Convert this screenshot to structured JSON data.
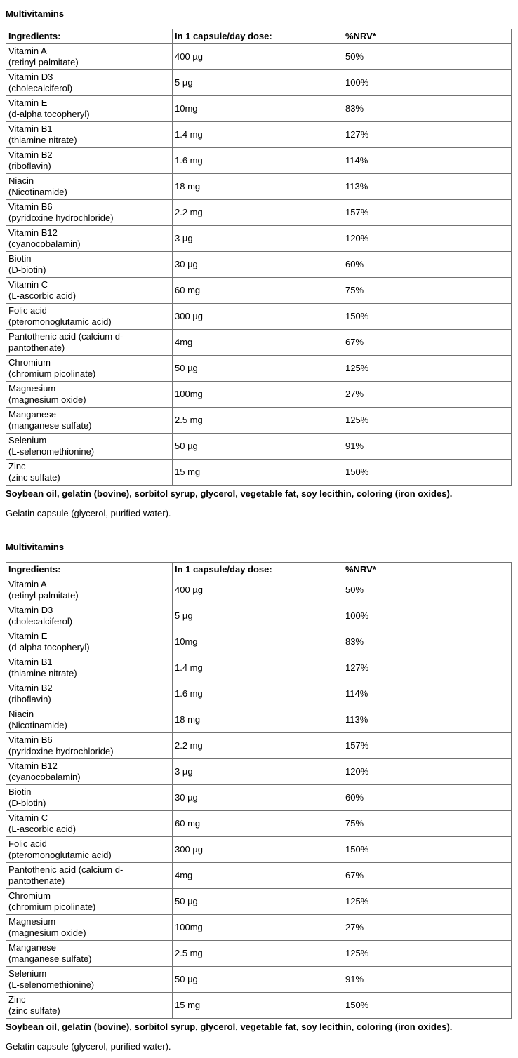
{
  "page": {
    "background_color": "#ffffff",
    "text_color": "#000000",
    "table_border_color": "#737373"
  },
  "sections": [
    {
      "heading": "Multivitamins",
      "table": {
        "columns": [
          "Ingredients:",
          "In 1 capsule/day dose:",
          "%NRV*"
        ],
        "rows": [
          {
            "name": "Vitamin A",
            "sub": "(retinyl palmitate)",
            "dose": "400 µg",
            "nrv": "50%"
          },
          {
            "name": "Vitamin D3",
            "sub": "(cholecalciferol)",
            "dose": "5 µg",
            "nrv": "100%"
          },
          {
            "name": "Vitamin E",
            "sub": "(d-alpha tocopheryl)",
            "dose": "10mg",
            "nrv": "83%"
          },
          {
            "name": "Vitamin B1",
            "sub": "(thiamine nitrate)",
            "dose": "1.4 mg",
            "nrv": "127%"
          },
          {
            "name": "Vitamin B2",
            "sub": "(riboflavin)",
            "dose": "1.6 mg",
            "nrv": "114%"
          },
          {
            "name": "Niacin",
            "sub": "(Nicotinamide)",
            "dose": "18 mg",
            "nrv": "113%"
          },
          {
            "name": "Vitamin B6",
            "sub": "(pyridoxine hydrochloride)",
            "dose": "2.2 mg",
            "nrv": "157%"
          },
          {
            "name": "Vitamin B12",
            "sub": "(cyanocobalamin)",
            "dose": "3 µg",
            "nrv": "120%"
          },
          {
            "name": "Biotin",
            "sub": "(D-biotin)",
            "dose": "30 µg",
            "nrv": "60%"
          },
          {
            "name": "Vitamin C",
            "sub": "(L-ascorbic acid)",
            "dose": "60 mg",
            "nrv": "75%"
          },
          {
            "name": "Folic acid",
            "sub": "(pteromonoglutamic acid)",
            "dose": "300 µg",
            "nrv": "150%"
          },
          {
            "name": "Pantothenic acid (calcium d-pantothenate)",
            "sub": "",
            "dose": "4mg",
            "nrv": "67%"
          },
          {
            "name": "Chromium",
            "sub": "(chromium picolinate)",
            "dose": "50 µg",
            "nrv": "125%"
          },
          {
            "name": "Magnesium",
            "sub": "(magnesium oxide)",
            "dose": "100mg",
            "nrv": "27%"
          },
          {
            "name": "Manganese",
            "sub": "(manganese sulfate)",
            "dose": "2.5 mg",
            "nrv": "125%"
          },
          {
            "name": "Selenium",
            "sub": "(L-selenomethionine)",
            "dose": "50 µg",
            "nrv": "91%"
          },
          {
            "name": "Zinc",
            "sub": "(zinc sulfate)",
            "dose": "15 mg",
            "nrv": "150%"
          }
        ]
      },
      "footer_bold": "Soybean oil, gelatin (bovine), sorbitol syrup, glycerol, vegetable fat, soy lecithin, coloring (iron oxides).",
      "footer_regular": "Gelatin capsule (glycerol, purified water)."
    },
    {
      "heading": "Multivitamins",
      "table": {
        "columns": [
          "Ingredients:",
          "In 1 capsule/day dose:",
          "%NRV*"
        ],
        "rows": [
          {
            "name": "Vitamin A",
            "sub": "(retinyl palmitate)",
            "dose": "400 µg",
            "nrv": "50%"
          },
          {
            "name": "Vitamin D3",
            "sub": "(cholecalciferol)",
            "dose": "5 µg",
            "nrv": "100%"
          },
          {
            "name": "Vitamin E",
            "sub": "(d-alpha tocopheryl)",
            "dose": "10mg",
            "nrv": "83%"
          },
          {
            "name": "Vitamin B1",
            "sub": "(thiamine nitrate)",
            "dose": "1.4 mg",
            "nrv": "127%"
          },
          {
            "name": "Vitamin B2",
            "sub": "(riboflavin)",
            "dose": "1.6 mg",
            "nrv": "114%"
          },
          {
            "name": "Niacin",
            "sub": "(Nicotinamide)",
            "dose": "18 mg",
            "nrv": "113%"
          },
          {
            "name": "Vitamin B6",
            "sub": "(pyridoxine hydrochloride)",
            "dose": "2.2 mg",
            "nrv": "157%"
          },
          {
            "name": "Vitamin B12",
            "sub": "(cyanocobalamin)",
            "dose": "3 µg",
            "nrv": "120%"
          },
          {
            "name": "Biotin",
            "sub": "(D-biotin)",
            "dose": "30 µg",
            "nrv": "60%"
          },
          {
            "name": "Vitamin C",
            "sub": "(L-ascorbic acid)",
            "dose": "60 mg",
            "nrv": "75%"
          },
          {
            "name": "Folic acid",
            "sub": "(pteromonoglutamic acid)",
            "dose": "300 µg",
            "nrv": "150%"
          },
          {
            "name": "Pantothenic acid (calcium d-pantothenate)",
            "sub": "",
            "dose": "4mg",
            "nrv": "67%"
          },
          {
            "name": "Chromium",
            "sub": "(chromium picolinate)",
            "dose": "50 µg",
            "nrv": "125%"
          },
          {
            "name": "Magnesium",
            "sub": "(magnesium oxide)",
            "dose": "100mg",
            "nrv": "27%"
          },
          {
            "name": "Manganese",
            "sub": "(manganese sulfate)",
            "dose": "2.5 mg",
            "nrv": "125%"
          },
          {
            "name": "Selenium",
            "sub": "(L-selenomethionine)",
            "dose": "50 µg",
            "nrv": "91%"
          },
          {
            "name": "Zinc",
            "sub": "(zinc sulfate)",
            "dose": "15 mg",
            "nrv": "150%"
          }
        ]
      },
      "footer_bold": "Soybean oil, gelatin (bovine), sorbitol syrup, glycerol, vegetable fat, soy lecithin, coloring (iron oxides).",
      "footer_regular": "Gelatin capsule (glycerol, purified water)."
    }
  ]
}
